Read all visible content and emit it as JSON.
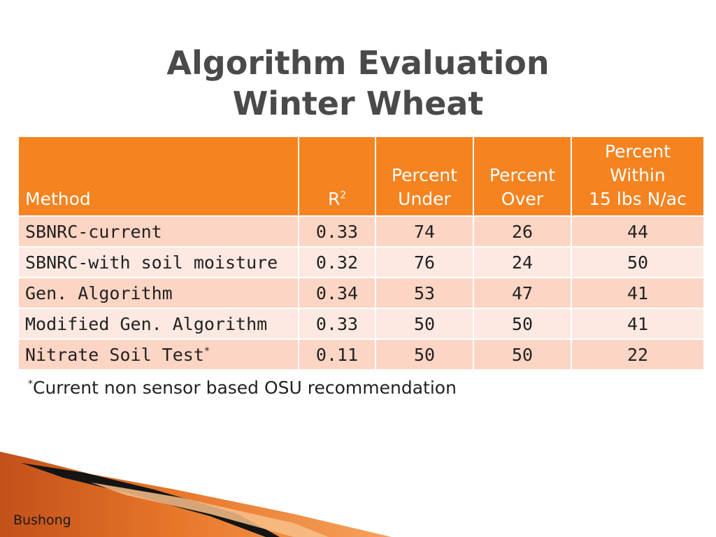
{
  "title": {
    "line1": "Algorithm Evaluation",
    "line2": "Winter Wheat"
  },
  "table": {
    "headers": {
      "method": "Method",
      "r2_base": "R",
      "r2_sup": "2",
      "under_l1": "Percent",
      "under_l2": "Under",
      "over_l1": "Percent",
      "over_l2": "Over",
      "within_l1": "Percent",
      "within_l2": "Within",
      "within_l3": "15 lbs N/ac"
    },
    "rows": [
      {
        "method": "SBNRC-current",
        "r2": "0.33",
        "under": "74",
        "over": "26",
        "within": "44"
      },
      {
        "method": "SBNRC-with soil moisture",
        "r2": "0.32",
        "under": "76",
        "over": "24",
        "within": "50"
      },
      {
        "method": "Gen. Algorithm",
        "r2": "0.34",
        "under": "53",
        "over": "47",
        "within": "41"
      },
      {
        "method": "Modified Gen. Algorithm",
        "r2": "0.33",
        "under": "50",
        "over": "50",
        "within": "41"
      },
      {
        "method": "Nitrate Soil Test",
        "method_sup": "*",
        "r2": "0.11",
        "under": "50",
        "over": "50",
        "within": "22"
      }
    ]
  },
  "footnote": {
    "marker": "*",
    "text": "Current non sensor based OSU recommendation"
  },
  "author": "Bushong",
  "colors": {
    "header_bg": "#f58320",
    "row_odd": "#fcd5c4",
    "row_even": "#fde9e1",
    "title_text": "#4a4a4a",
    "accent_dark": "#c2501a",
    "accent_mid": "#e8772a",
    "accent_light": "#f6a25c"
  }
}
